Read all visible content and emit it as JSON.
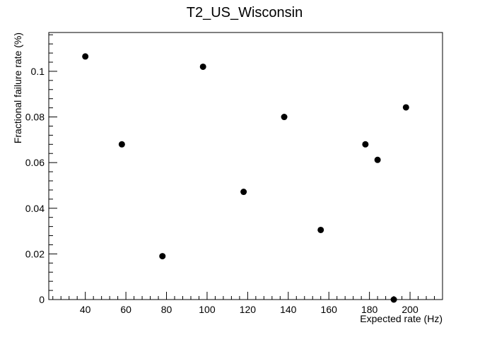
{
  "chart_data": {
    "type": "scatter",
    "title": "T2_US_Wisconsin",
    "xlabel": "Expected rate (Hz)",
    "ylabel": "Fractional failure rate (%)",
    "xlim": [
      22,
      216
    ],
    "ylim": [
      0,
      0.117
    ],
    "xticks": [
      40,
      60,
      80,
      100,
      120,
      140,
      160,
      180,
      200
    ],
    "yticks": [
      0,
      0.02,
      0.04,
      0.06,
      0.08,
      0.1
    ],
    "ytick_labels": [
      "0",
      "0.02",
      "0.04",
      "0.06",
      "0.08",
      "0.1"
    ],
    "grid": false,
    "legend": null,
    "marker_color": "#000000",
    "points": [
      {
        "x": 40,
        "y": 0.1065
      },
      {
        "x": 58,
        "y": 0.068
      },
      {
        "x": 78,
        "y": 0.019
      },
      {
        "x": 98,
        "y": 0.102
      },
      {
        "x": 118,
        "y": 0.0472
      },
      {
        "x": 138,
        "y": 0.08
      },
      {
        "x": 156,
        "y": 0.0305
      },
      {
        "x": 178,
        "y": 0.068
      },
      {
        "x": 184,
        "y": 0.0612
      },
      {
        "x": 192,
        "y": 0.0
      },
      {
        "x": 198,
        "y": 0.0842
      }
    ]
  }
}
